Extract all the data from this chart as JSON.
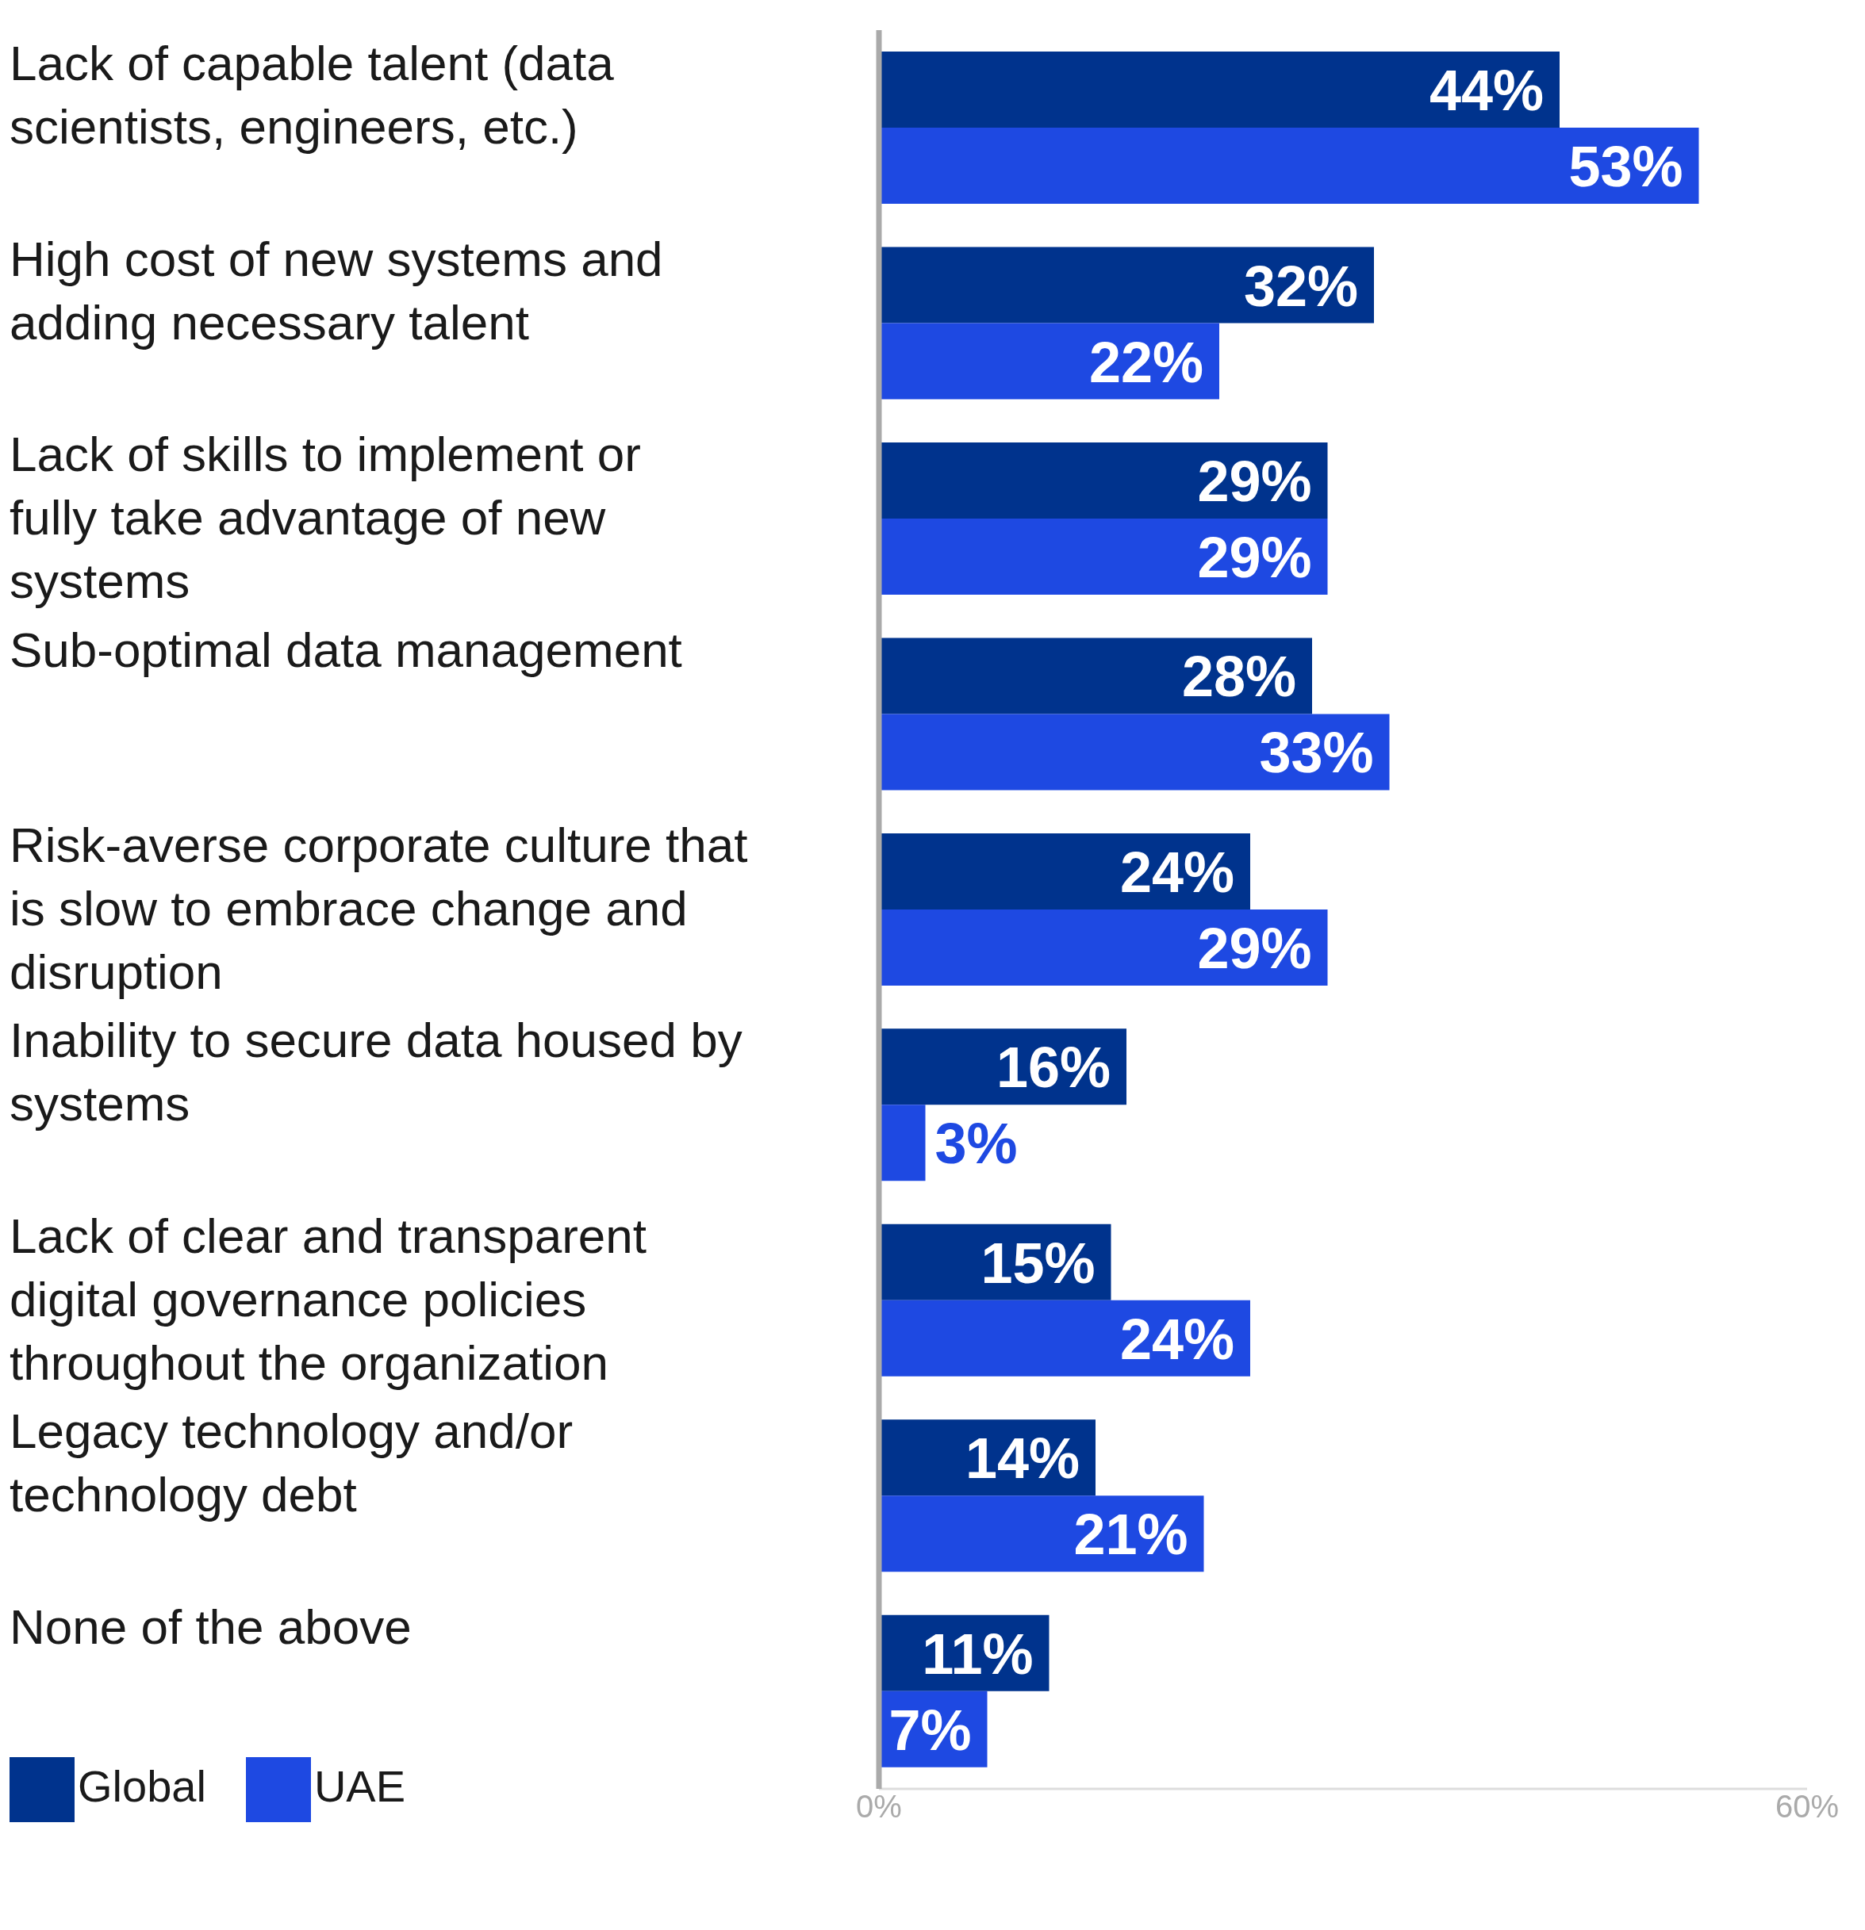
{
  "chart_data": {
    "type": "bar",
    "orientation": "horizontal",
    "categories": [
      "Lack of capable talent (data scientists, engineers, etc.)",
      "High cost of new systems and adding necessary talent",
      "Lack of skills to implement or fully take advantage of new systems",
      "Sub-optimal data management",
      "Risk-averse corporate culture that is slow to embrace change and disruption",
      "Inability to secure data housed by systems",
      "Lack of clear and transparent digital governance policies throughout the organization",
      "Legacy technology and/or technology debt",
      "None of the above"
    ],
    "series": [
      {
        "name": "Global",
        "color": "#00338d",
        "values": [
          44,
          32,
          29,
          28,
          24,
          16,
          15,
          14,
          11
        ],
        "value_labels": [
          "44%",
          "32%",
          "29%",
          "28%",
          "24%",
          "16%",
          "15%",
          "14%",
          "11%"
        ]
      },
      {
        "name": "UAE",
        "color": "#1e49e2",
        "values": [
          53,
          22,
          29,
          33,
          29,
          3,
          24,
          21,
          7
        ],
        "value_labels": [
          "53%",
          "22%",
          "29%",
          "33%",
          "29%",
          "3%",
          "24%",
          "21%",
          "7%"
        ]
      }
    ],
    "xlim": [
      0,
      60
    ],
    "xticks": [
      {
        "value": 0,
        "label": "0%"
      },
      {
        "value": 60,
        "label": "60%"
      }
    ],
    "legend": "bottom left"
  }
}
